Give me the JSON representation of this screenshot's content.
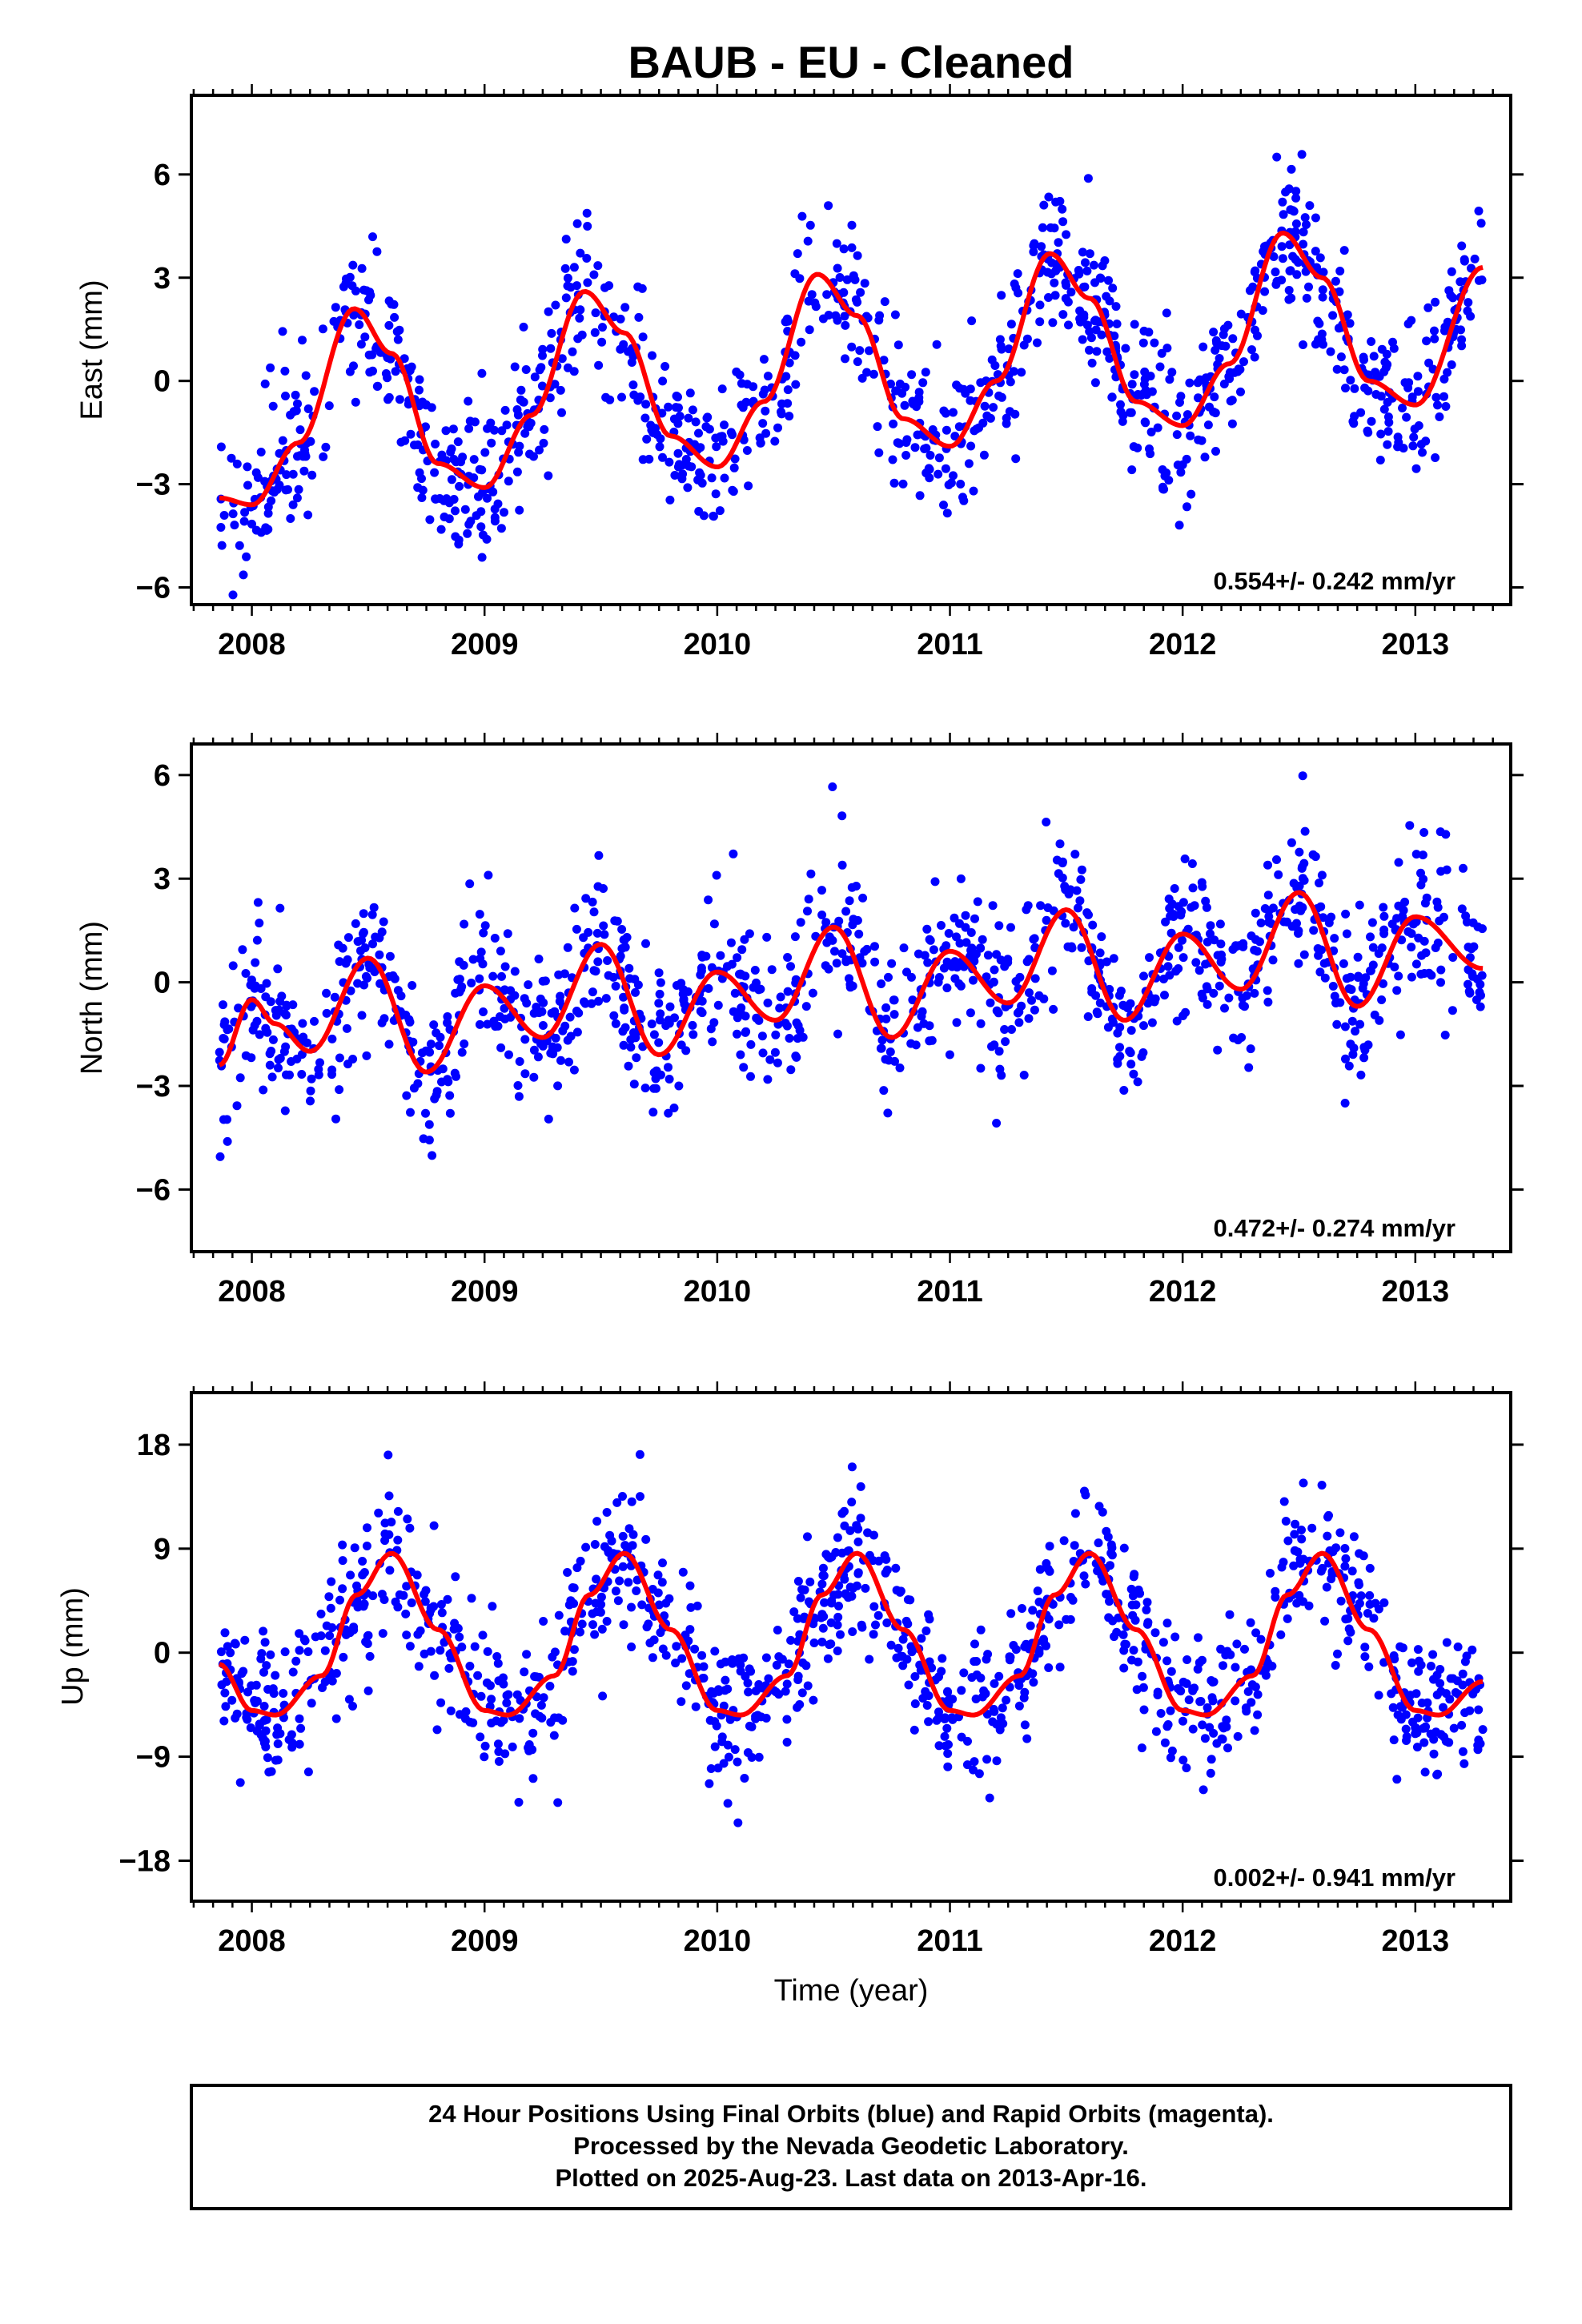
{
  "page_title": "BAUB  - EU - Cleaned",
  "colors": {
    "points": "#0000ff",
    "fit_line": "#ff0000",
    "frame": "#000000",
    "background": "#ffffff"
  },
  "footer": {
    "line1": "24 Hour Positions Using Final Orbits (blue) and Rapid Orbits (magenta).",
    "line2": "Processed by the Nevada Geodetic Laboratory.",
    "line3": "Plotted on 2025-Aug-23. Last data on 2013-Apr-16."
  },
  "chart_data": [
    {
      "type": "scatter",
      "component": "east",
      "ylabel": "East (mm)",
      "xlabel": "",
      "rate_text": "0.554+/- 0.242 mm/yr",
      "xlim": [
        2007.74,
        2013.41
      ],
      "ylim": [
        -6.5,
        8.3
      ],
      "yticks": [
        -6,
        -3,
        0,
        3,
        6
      ],
      "xticks": [
        2008,
        2009,
        2010,
        2011,
        2012,
        2013
      ],
      "x_tick_labels": [
        "2008",
        "2009",
        "2010",
        "2011",
        "2012",
        "2013"
      ],
      "data_range": [
        2007.86,
        2013.29
      ],
      "fit": {
        "x": [
          2007.86,
          2008.0,
          2008.2,
          2008.44,
          2008.6,
          2008.8,
          2009.0,
          2009.2,
          2009.43,
          2009.6,
          2009.8,
          2010.0,
          2010.2,
          2010.43,
          2010.6,
          2010.8,
          2011.0,
          2011.2,
          2011.43,
          2011.6,
          2011.8,
          2012.0,
          2012.2,
          2012.43,
          2012.6,
          2012.8,
          2013.0,
          2013.29
        ],
        "y": [
          -3.4,
          -3.6,
          -1.8,
          2.1,
          0.8,
          -2.4,
          -3.1,
          -1.0,
          2.6,
          1.4,
          -1.6,
          -2.5,
          -0.6,
          3.1,
          1.9,
          -1.1,
          -1.9,
          0.0,
          3.7,
          2.4,
          -0.6,
          -1.3,
          0.5,
          4.3,
          3.0,
          0.0,
          -0.7,
          3.3
        ]
      }
    },
    {
      "type": "scatter",
      "component": "north",
      "ylabel": "North (mm)",
      "xlabel": "",
      "rate_text": "0.472+/- 0.274 mm/yr",
      "xlim": [
        2007.74,
        2013.41
      ],
      "ylim": [
        -7.8,
        6.9
      ],
      "yticks": [
        -6,
        -3,
        0,
        3,
        6
      ],
      "xticks": [
        2008,
        2009,
        2010,
        2011,
        2012,
        2013
      ],
      "x_tick_labels": [
        "2008",
        "2009",
        "2010",
        "2011",
        "2012",
        "2013"
      ],
      "data_range": [
        2007.86,
        2013.29
      ],
      "fit": {
        "x": [
          2007.86,
          2008.0,
          2008.1,
          2008.25,
          2008.5,
          2008.75,
          2009.0,
          2009.25,
          2009.5,
          2009.75,
          2010.0,
          2010.25,
          2010.5,
          2010.75,
          2011.0,
          2011.25,
          2011.5,
          2011.75,
          2012.0,
          2012.25,
          2012.5,
          2012.75,
          2013.0,
          2013.29
        ],
        "y": [
          -2.4,
          -0.5,
          -1.2,
          -2.0,
          0.7,
          -2.6,
          -0.1,
          -1.6,
          1.1,
          -2.1,
          0.3,
          -1.1,
          1.6,
          -1.6,
          0.9,
          -0.6,
          2.1,
          -1.1,
          1.4,
          -0.2,
          2.6,
          -0.7,
          1.9,
          0.4
        ]
      }
    },
    {
      "type": "scatter",
      "component": "up",
      "ylabel": "Up (mm)",
      "xlabel": "Time (year)",
      "rate_text": "0.002+/- 0.941 mm/yr",
      "xlim": [
        2007.74,
        2013.41
      ],
      "ylim": [
        -21.5,
        22.5
      ],
      "yticks": [
        -18,
        -9,
        0,
        9,
        18
      ],
      "xticks": [
        2008,
        2009,
        2010,
        2011,
        2012,
        2013
      ],
      "x_tick_labels": [
        "2008",
        "2009",
        "2010",
        "2011",
        "2012",
        "2013"
      ],
      "data_range": [
        2007.86,
        2013.29
      ],
      "fit": {
        "x": [
          2007.86,
          2008.0,
          2008.1,
          2008.3,
          2008.45,
          2008.6,
          2008.8,
          2009.0,
          2009.1,
          2009.3,
          2009.45,
          2009.6,
          2009.8,
          2010.0,
          2010.1,
          2010.3,
          2010.45,
          2010.6,
          2010.8,
          2011.0,
          2011.1,
          2011.3,
          2011.45,
          2011.6,
          2011.8,
          2012.0,
          2012.1,
          2012.3,
          2012.45,
          2012.6,
          2012.8,
          2013.0,
          2013.1,
          2013.29
        ],
        "y": [
          -1.0,
          -5.0,
          -5.4,
          -2.0,
          5.0,
          8.6,
          2.0,
          -5.0,
          -5.4,
          -2.0,
          5.0,
          8.6,
          2.0,
          -5.0,
          -5.4,
          -2.0,
          5.0,
          8.6,
          2.0,
          -5.0,
          -5.4,
          -2.0,
          5.0,
          8.6,
          2.0,
          -5.0,
          -5.4,
          -2.0,
          5.0,
          8.6,
          2.0,
          -5.0,
          -5.4,
          -2.5
        ]
      }
    }
  ]
}
